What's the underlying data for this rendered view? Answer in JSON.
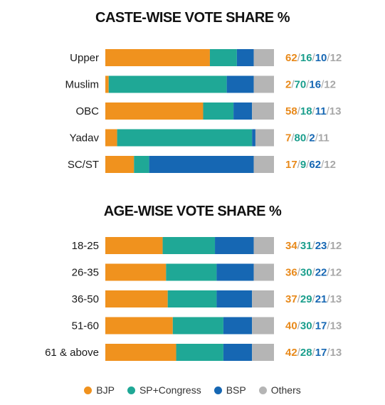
{
  "colors": {
    "BJP": "#F0921E",
    "SP+Congress": "#1FA896",
    "BSP": "#1667B3",
    "Others": "#B5B5B5"
  },
  "legend": [
    "BJP",
    "SP+Congress",
    "BSP",
    "Others"
  ],
  "chart_data": [
    {
      "type": "bar",
      "orientation": "horizontal",
      "stacked": true,
      "title": "CASTE-WISE VOTE SHARE %",
      "categories": [
        "Upper",
        "Muslim",
        "OBC",
        "Yadav",
        "SC/ST"
      ],
      "series": [
        {
          "name": "BJP",
          "values": [
            62,
            2,
            58,
            7,
            17
          ]
        },
        {
          "name": "SP+Congress",
          "values": [
            16,
            70,
            18,
            80,
            9
          ]
        },
        {
          "name": "BSP",
          "values": [
            10,
            16,
            11,
            2,
            62
          ]
        },
        {
          "name": "Others",
          "values": [
            12,
            12,
            13,
            11,
            12
          ]
        }
      ],
      "xlim": [
        0,
        100
      ]
    },
    {
      "type": "bar",
      "orientation": "horizontal",
      "stacked": true,
      "title": "AGE-WISE VOTE SHARE %",
      "categories": [
        "18-25",
        "26-35",
        "36-50",
        "51-60",
        "61 & above"
      ],
      "series": [
        {
          "name": "BJP",
          "values": [
            34,
            36,
            37,
            40,
            42
          ]
        },
        {
          "name": "SP+Congress",
          "values": [
            31,
            30,
            29,
            30,
            28
          ]
        },
        {
          "name": "BSP",
          "values": [
            23,
            22,
            21,
            17,
            17
          ]
        },
        {
          "name": "Others",
          "values": [
            12,
            12,
            13,
            13,
            13
          ]
        }
      ],
      "xlim": [
        0,
        100
      ]
    }
  ]
}
